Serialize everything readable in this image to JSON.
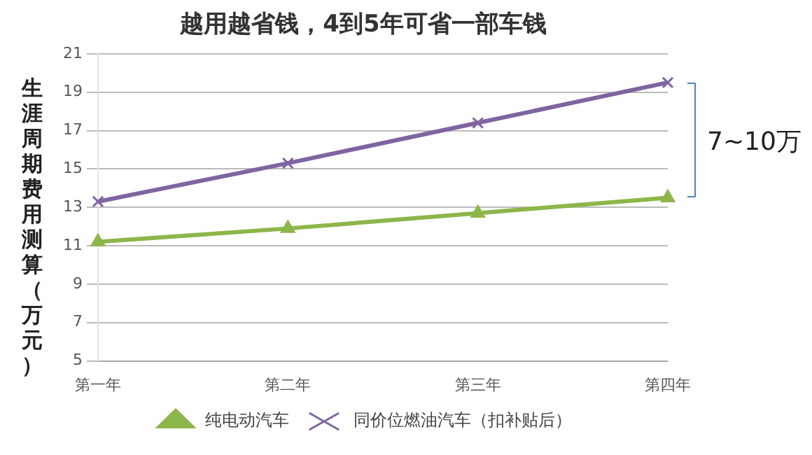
{
  "chart_data": {
    "type": "line",
    "title": "越用越省钱，4到5年可省一部车钱",
    "ylabel": "生涯周期费用测算（万元）",
    "categories": [
      "第一年",
      "第二年",
      "第三年",
      "第四年"
    ],
    "series": [
      {
        "name": "纯电动汽车",
        "color": "#8db64a",
        "marker": "triangle",
        "values": [
          11.2,
          11.9,
          12.7,
          13.5
        ]
      },
      {
        "name": "同价位燃油汽车（扣补贴后）",
        "color": "#8064a2",
        "marker": "cross",
        "values": [
          13.3,
          15.3,
          17.4,
          19.5
        ]
      }
    ],
    "ylim": [
      5,
      21
    ],
    "yticks": [
      5,
      7,
      9,
      11,
      13,
      15,
      17,
      19,
      21
    ],
    "grid": "y",
    "legend": "bottom",
    "annotations": [
      "7~10万"
    ]
  }
}
